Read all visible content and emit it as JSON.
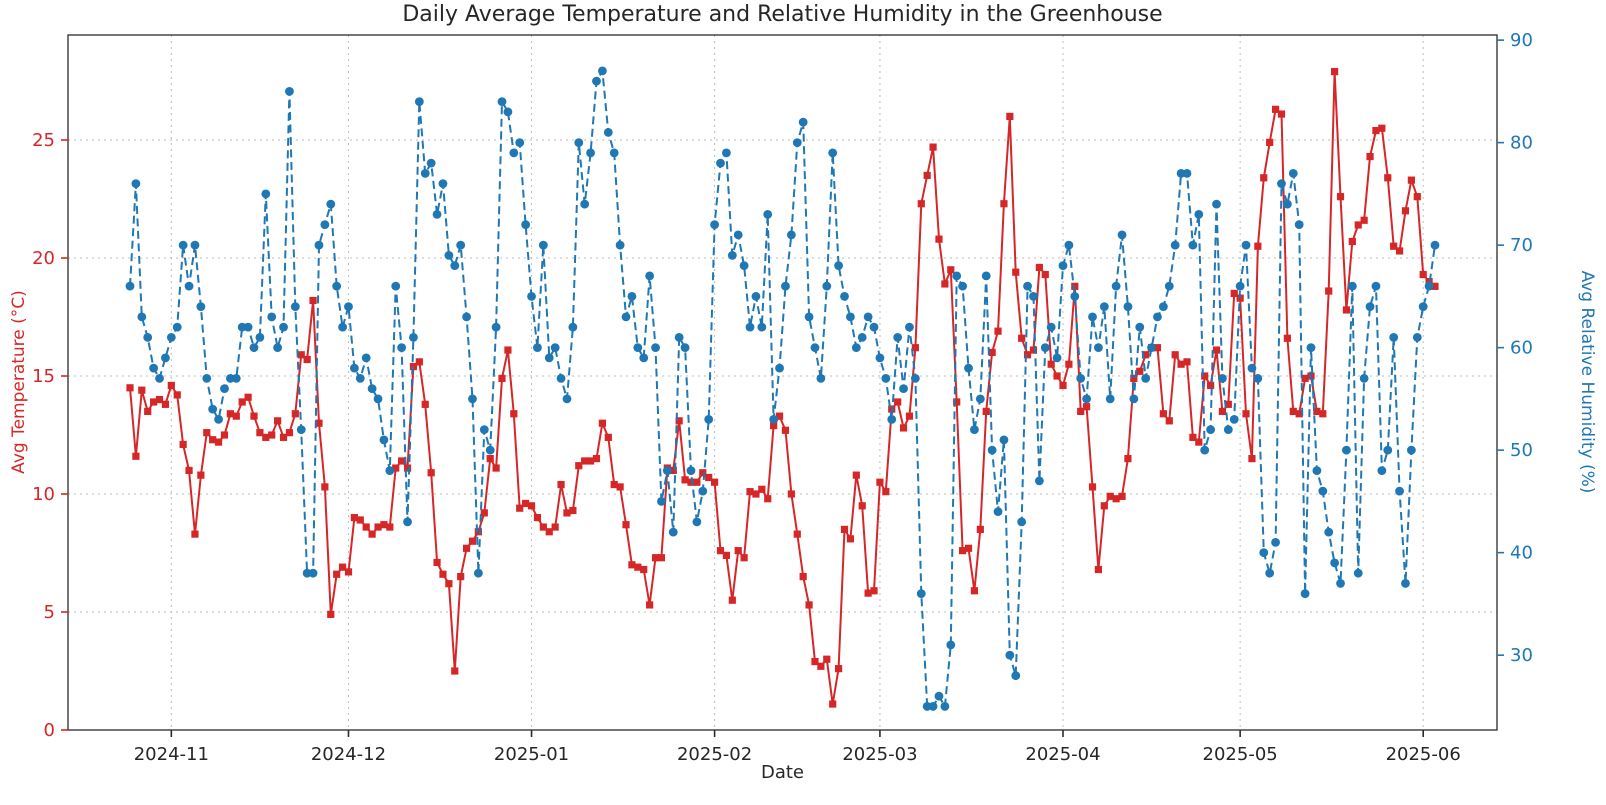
{
  "title": "Daily Average Temperature and Relative Humidity in the Greenhouse",
  "colors": {
    "temperature": "#d62728",
    "humidity": "#1f77b4",
    "grid": "#bdbdbd",
    "axis": "#2b2b2b",
    "title_text": "#262626"
  },
  "chart_data": {
    "type": "line",
    "title": "Daily Average Temperature and Relative Humidity in the Greenhouse",
    "xlabel": "Date",
    "grid": true,
    "legend_position": "none",
    "x_frequency": "daily",
    "x_start": "2024-10-25",
    "x_tick_labels": [
      "2024-11",
      "2024-12",
      "2025-01",
      "2025-02",
      "2025-03",
      "2025-04",
      "2025-05",
      "2025-06"
    ],
    "x_tick_indices": [
      7,
      37,
      68,
      99,
      127,
      158,
      188,
      219
    ],
    "axes": {
      "left": {
        "label": "Avg Temperature (°C)",
        "ticks": [
          0,
          5,
          10,
          15,
          20,
          25
        ],
        "range": [
          0,
          29.45
        ],
        "color": "#d62728"
      },
      "right": {
        "label": "Avg Relative Humidity (%)",
        "ticks": [
          30,
          40,
          50,
          60,
          70,
          80,
          90
        ],
        "range": [
          22.7,
          90.5
        ],
        "color": "#1f77b4"
      }
    },
    "series": [
      {
        "name": "Avg Temperature (°C)",
        "axis": "left",
        "line_style": "solid",
        "marker": "square",
        "color": "#d62728",
        "values": [
          14.5,
          11.6,
          14.4,
          13.5,
          13.9,
          14.0,
          13.8,
          14.6,
          14.2,
          12.1,
          11.0,
          8.3,
          10.8,
          12.6,
          12.3,
          12.2,
          12.5,
          13.4,
          13.3,
          13.9,
          14.1,
          13.3,
          12.6,
          12.4,
          12.5,
          13.1,
          12.4,
          12.6,
          13.4,
          15.9,
          15.7,
          18.2,
          13.0,
          10.3,
          4.9,
          6.6,
          6.9,
          6.7,
          9.0,
          8.9,
          8.6,
          8.3,
          8.6,
          8.7,
          8.6,
          11.1,
          11.4,
          11.1,
          15.4,
          15.6,
          13.8,
          10.9,
          7.1,
          6.6,
          6.2,
          2.5,
          6.5,
          7.7,
          8.0,
          8.4,
          9.2,
          11.5,
          11.1,
          14.9,
          16.1,
          13.4,
          9.4,
          9.6,
          9.5,
          9.0,
          8.6,
          8.4,
          8.6,
          10.4,
          9.2,
          9.3,
          11.2,
          11.4,
          11.4,
          11.5,
          13.0,
          12.4,
          10.4,
          10.3,
          8.7,
          7.0,
          6.9,
          6.8,
          5.3,
          7.3,
          7.3,
          11.1,
          11.0,
          13.1,
          10.6,
          10.5,
          10.5,
          10.9,
          10.7,
          10.5,
          7.6,
          7.4,
          5.5,
          7.6,
          7.3,
          10.1,
          10.0,
          10.2,
          9.8,
          12.9,
          13.3,
          12.7,
          10.0,
          8.3,
          6.5,
          5.3,
          2.9,
          2.7,
          3.0,
          1.1,
          2.6,
          8.5,
          8.1,
          10.8,
          9.5,
          5.8,
          5.9,
          10.5,
          10.1,
          13.6,
          13.9,
          12.8,
          13.3,
          16.2,
          22.3,
          23.5,
          24.7,
          20.8,
          18.9,
          19.5,
          13.9,
          7.6,
          7.7,
          5.9,
          8.5,
          13.5,
          16.0,
          16.9,
          22.3,
          26.0,
          19.4,
          16.6,
          15.9,
          16.1,
          19.6,
          19.3,
          15.5,
          15.0,
          14.6,
          15.5,
          18.8,
          13.5,
          13.7,
          10.3,
          6.8,
          9.5,
          9.9,
          9.8,
          9.9,
          11.5,
          14.9,
          15.2,
          15.9,
          16.2,
          16.2,
          13.4,
          13.1,
          15.9,
          15.5,
          15.6,
          12.4,
          12.2,
          15.0,
          14.6,
          16.1,
          13.5,
          13.8,
          18.5,
          18.3,
          13.4,
          11.5,
          20.5,
          23.4,
          24.9,
          26.3,
          26.1,
          16.6,
          13.5,
          13.4,
          14.9,
          15.0,
          13.5,
          13.4,
          18.6,
          27.9,
          22.6,
          17.8,
          20.7,
          21.4,
          21.6,
          24.3,
          25.4,
          25.5,
          23.4,
          20.5,
          20.3,
          22.0,
          23.3,
          22.6,
          19.3,
          19.0,
          18.8
        ]
      },
      {
        "name": "Avg Relative Humidity (%)",
        "axis": "right",
        "line_style": "dashed",
        "marker": "circle",
        "color": "#1f77b4",
        "values": [
          66,
          76,
          63,
          61,
          58,
          57,
          59,
          61,
          62,
          70,
          66,
          70,
          64,
          57,
          54,
          53,
          56,
          57,
          57,
          62,
          62,
          60,
          61,
          75,
          63,
          60,
          62,
          85,
          64,
          52,
          38,
          38,
          70,
          72,
          74,
          66,
          62,
          64,
          58,
          57,
          59,
          56,
          55,
          51,
          48,
          66,
          60,
          43,
          61,
          84,
          77,
          78,
          73,
          76,
          69,
          68,
          70,
          63,
          55,
          38,
          52,
          50,
          62,
          84,
          83,
          79,
          80,
          72,
          65,
          60,
          70,
          59,
          60,
          57,
          55,
          62,
          80,
          74,
          79,
          86,
          87,
          81,
          79,
          70,
          63,
          65,
          60,
          59,
          67,
          60,
          45,
          48,
          42,
          61,
          60,
          48,
          43,
          46,
          53,
          72,
          78,
          79,
          69,
          71,
          68,
          62,
          65,
          62,
          73,
          53,
          58,
          66,
          71,
          80,
          82,
          63,
          60,
          57,
          66,
          79,
          68,
          65,
          63,
          60,
          61,
          63,
          62,
          59,
          57,
          53,
          61,
          56,
          62,
          57,
          36,
          25,
          25,
          26,
          25,
          31,
          67,
          66,
          58,
          52,
          55,
          67,
          50,
          44,
          51,
          30,
          28,
          43,
          66,
          65,
          47,
          60,
          62,
          59,
          68,
          70,
          65,
          57,
          55,
          63,
          60,
          64,
          55,
          66,
          71,
          64,
          55,
          62,
          57,
          60,
          63,
          64,
          66,
          70,
          77,
          77,
          70,
          73,
          50,
          52,
          74,
          57,
          52,
          53,
          66,
          70,
          58,
          57,
          40,
          38,
          41,
          76,
          74,
          77,
          72,
          36,
          60,
          48,
          46,
          42,
          39,
          37,
          50,
          66,
          38,
          57,
          64,
          66,
          48,
          50,
          61,
          46,
          37,
          50,
          61,
          64,
          66,
          70
        ]
      }
    ]
  }
}
